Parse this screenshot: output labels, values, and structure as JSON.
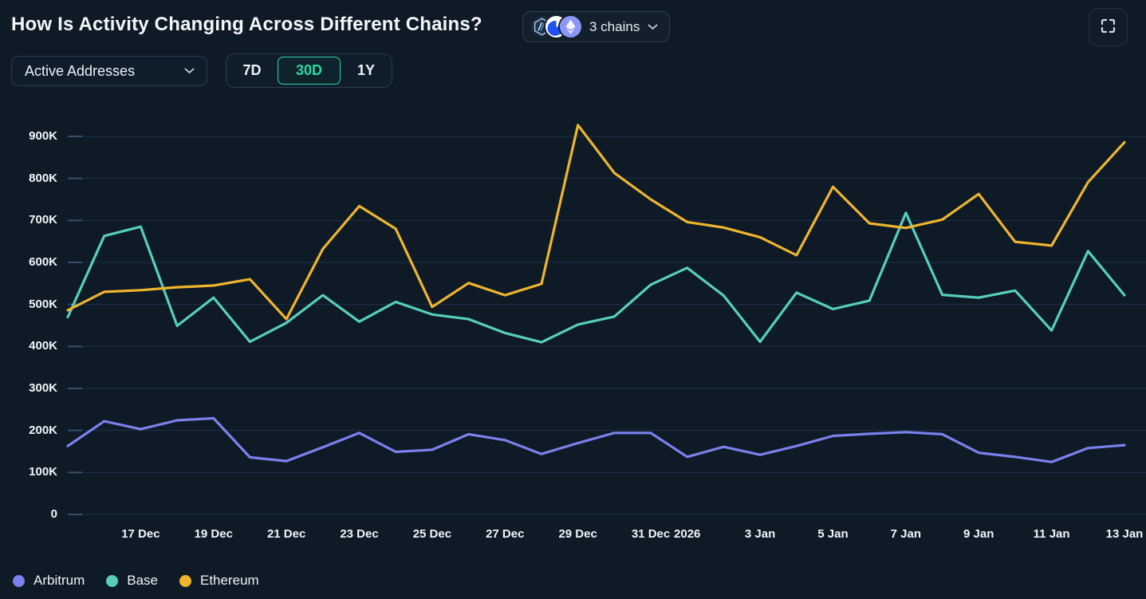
{
  "header": {
    "title": "How Is Activity Changing Across Different Chains?",
    "chains_selector": {
      "label": "3 chains",
      "icons": [
        "arbitrum-icon",
        "base-icon",
        "ethereum-icon"
      ]
    }
  },
  "controls": {
    "metric_dropdown": {
      "value": "Active Addresses"
    },
    "ranges": [
      {
        "label": "7D",
        "selected": false
      },
      {
        "label": "30D",
        "selected": true
      },
      {
        "label": "1Y",
        "selected": false
      }
    ]
  },
  "colors": {
    "background": "#0e1a26",
    "gridline": "#1e3246",
    "accent_green": "#2dd4a0",
    "arbitrum": "#7a81ec",
    "base": "#57cebb",
    "ethereum": "#eeb52d"
  },
  "chart_data": {
    "type": "line",
    "title": "How Is Activity Changing Across Different Chains?",
    "metric": "Active Addresses",
    "selected_range": "30D",
    "grid": "horizontal",
    "legend_position": "bottom-left",
    "ylim": [
      0,
      950000
    ],
    "y_ticks": [
      "0",
      "100K",
      "200K",
      "300K",
      "400K",
      "500K",
      "600K",
      "700K",
      "800K",
      "900K"
    ],
    "y_tick_values": [
      0,
      100000,
      200000,
      300000,
      400000,
      500000,
      600000,
      700000,
      800000,
      900000
    ],
    "x": [
      "15 Dec",
      "16 Dec",
      "17 Dec",
      "18 Dec",
      "19 Dec",
      "20 Dec",
      "21 Dec",
      "22 Dec",
      "23 Dec",
      "24 Dec",
      "25 Dec",
      "26 Dec",
      "27 Dec",
      "28 Dec",
      "29 Dec",
      "30 Dec",
      "31 Dec",
      "1 Jan",
      "2 Jan",
      "3 Jan",
      "4 Jan",
      "5 Jan",
      "6 Jan",
      "7 Jan",
      "8 Jan",
      "9 Jan",
      "10 Jan",
      "11 Jan",
      "12 Jan",
      "13 Jan"
    ],
    "x_tick_labels": [
      {
        "label": "17 Dec",
        "index": 2
      },
      {
        "label": "19 Dec",
        "index": 4
      },
      {
        "label": "21 Dec",
        "index": 6
      },
      {
        "label": "23 Dec",
        "index": 8
      },
      {
        "label": "25 Dec",
        "index": 10
      },
      {
        "label": "27 Dec",
        "index": 12
      },
      {
        "label": "29 Dec",
        "index": 14
      },
      {
        "label": "31 Dec",
        "index": 16
      },
      {
        "label": "2026",
        "index": 17
      },
      {
        "label": "3 Jan",
        "index": 19
      },
      {
        "label": "5 Jan",
        "index": 21
      },
      {
        "label": "7 Jan",
        "index": 23
      },
      {
        "label": "9 Jan",
        "index": 25
      },
      {
        "label": "11 Jan",
        "index": 27
      },
      {
        "label": "13 Jan",
        "index": 29
      }
    ],
    "series": [
      {
        "name": "Arbitrum",
        "color": "#7a81ec",
        "values": [
          163000,
          222000,
          203000,
          224000,
          229000,
          136000,
          127000,
          160000,
          194000,
          149000,
          154000,
          191000,
          177000,
          144000,
          170000,
          194000,
          194000,
          137000,
          161000,
          142000,
          163000,
          187000,
          192000,
          196000,
          191000,
          147000,
          137000,
          125000,
          158000,
          165000
        ]
      },
      {
        "name": "Base",
        "color": "#57cebb",
        "values": [
          470000,
          663000,
          685000,
          449000,
          516000,
          411000,
          456000,
          522000,
          459000,
          506000,
          476000,
          465000,
          432000,
          410000,
          452000,
          471000,
          547000,
          587000,
          521000,
          411000,
          528000,
          489000,
          509000,
          718000,
          523000,
          516000,
          533000,
          438000,
          627000,
          522000
        ]
      },
      {
        "name": "Ethereum",
        "color": "#eeb52d",
        "values": [
          486000,
          530000,
          534000,
          541000,
          545000,
          560000,
          465000,
          632000,
          734000,
          680000,
          494000,
          551000,
          522000,
          549000,
          927000,
          813000,
          750000,
          696000,
          683000,
          660000,
          617000,
          780000,
          693000,
          682000,
          702000,
          763000,
          649000,
          640000,
          791000,
          886000
        ]
      }
    ]
  }
}
